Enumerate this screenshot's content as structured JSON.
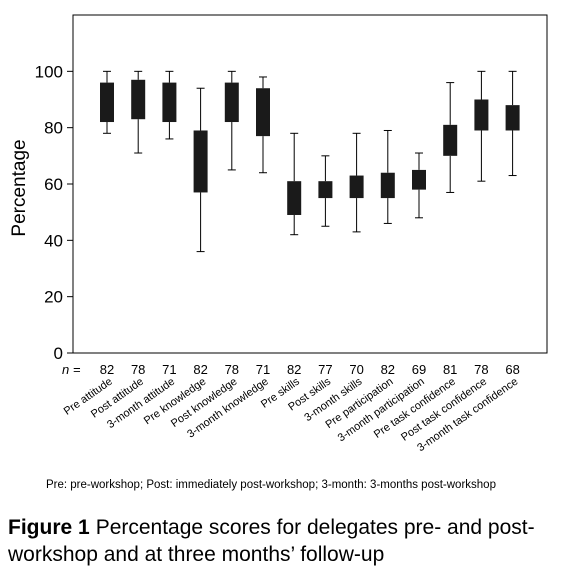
{
  "chart_data": {
    "type": "box",
    "ylabel": "Percentage",
    "ylim": [
      0,
      120
    ],
    "yticks": [
      0,
      20,
      40,
      60,
      80,
      100
    ],
    "n_label": "n =",
    "categories": [
      "Pre attitude",
      "Post attitude",
      "3-month attitude",
      "Pre knowledge",
      "Post knowledge",
      "3-month knowledge",
      "Pre skills",
      "Post skills",
      "3-month skills",
      "Pre participation",
      "3-month  participation",
      "Pre task confidence",
      "Post task confidence",
      "3-month task confidence"
    ],
    "n": [
      82,
      78,
      71,
      82,
      78,
      71,
      82,
      77,
      70,
      82,
      69,
      81,
      78,
      68
    ],
    "boxes": [
      {
        "min": 78,
        "q1": 82,
        "q3": 96,
        "max": 100
      },
      {
        "min": 71,
        "q1": 83,
        "q3": 97,
        "max": 100
      },
      {
        "min": 76,
        "q1": 82,
        "q3": 96,
        "max": 100
      },
      {
        "min": 36,
        "q1": 57,
        "q3": 79,
        "max": 94
      },
      {
        "min": 65,
        "q1": 82,
        "q3": 96,
        "max": 100
      },
      {
        "min": 64,
        "q1": 77,
        "q3": 94,
        "max": 98
      },
      {
        "min": 42,
        "q1": 49,
        "q3": 61,
        "max": 78
      },
      {
        "min": 45,
        "q1": 55,
        "q3": 61,
        "max": 70
      },
      {
        "min": 43,
        "q1": 55,
        "q3": 63,
        "max": 78
      },
      {
        "min": 46,
        "q1": 55,
        "q3": 64,
        "max": 79
      },
      {
        "min": 48,
        "q1": 58,
        "q3": 65,
        "max": 71
      },
      {
        "min": 57,
        "q1": 70,
        "q3": 81,
        "max": 96
      },
      {
        "min": 61,
        "q1": 79,
        "q3": 90,
        "max": 100
      },
      {
        "min": 63,
        "q1": 79,
        "q3": 88,
        "max": 100
      }
    ]
  },
  "footnote": "Pre: pre-workshop;  Post: immediately post-workshop;  3-month: 3-months post-workshop",
  "caption": {
    "label": "Figure 1",
    "text": "Percentage scores for delegates pre- and post-workshop and at three months’ follow-up"
  }
}
